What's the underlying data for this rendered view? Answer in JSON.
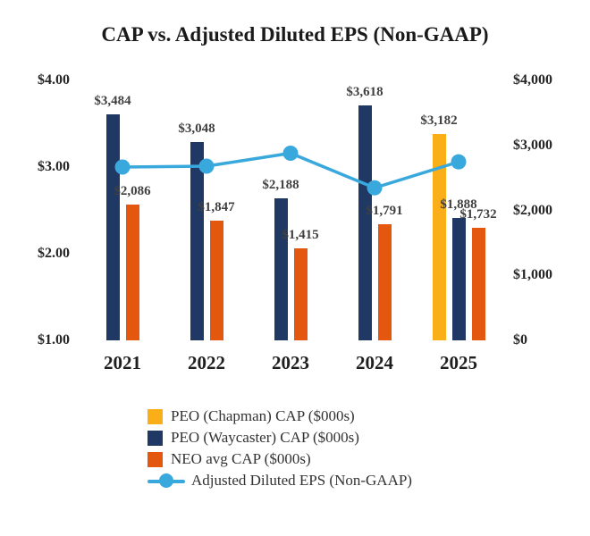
{
  "title": "CAP vs. Adjusted Diluted EPS (Non-GAAP)",
  "colors": {
    "chapman": "#FAAE17",
    "waycaster": "#1F3864",
    "neo": "#E4570E",
    "eps_line": "#39A8DC"
  },
  "chart_data": {
    "type": "combo-bar-line",
    "categories": [
      "2021",
      "2022",
      "2023",
      "2024",
      "2025"
    ],
    "bar_series": [
      {
        "name": "PEO (Chapman) CAP ($000s)",
        "key": "chapman",
        "color_key": "chapman",
        "values": [
          null,
          null,
          null,
          null,
          3182
        ],
        "labels": [
          "",
          "",
          "",
          "",
          "$3,182"
        ]
      },
      {
        "name": "PEO (Waycaster) CAP ($000s)",
        "key": "waycaster",
        "color_key": "waycaster",
        "values": [
          3484,
          3048,
          2188,
          3618,
          1888
        ],
        "labels": [
          "$3,484",
          "$3,048",
          "$2,188",
          "$3,618",
          "$1,888"
        ]
      },
      {
        "name": "NEO avg CAP ($000s)",
        "key": "neo",
        "color_key": "neo",
        "values": [
          2086,
          1847,
          1415,
          1791,
          1732
        ],
        "labels": [
          "$2,086",
          "$1,847",
          "$1,415",
          "$1,791",
          "$1,732"
        ]
      }
    ],
    "line_series": {
      "name": "Adjusted Diluted EPS (Non-GAAP)",
      "key": "eps",
      "color_key": "eps_line",
      "axis": "left",
      "values": [
        3.0,
        3.01,
        3.16,
        2.76,
        3.06
      ]
    },
    "left_axis": {
      "min": 1.0,
      "max": 4.0,
      "ticks": [
        "$4.00",
        "$3.00",
        "$2.00",
        "$1.00"
      ],
      "tick_values": [
        4,
        3,
        2,
        1
      ]
    },
    "right_axis": {
      "min": 0,
      "max": 4000,
      "ticks": [
        "$4,000",
        "$3,000",
        "$2,000",
        "$1,000",
        "$0"
      ],
      "tick_values": [
        4000,
        3000,
        2000,
        1000,
        0
      ]
    },
    "grid": false,
    "legend_position": "bottom"
  },
  "legend": [
    {
      "label": "PEO (Chapman) CAP ($000s)",
      "type": "swatch",
      "key": "chapman",
      "color_key": "chapman"
    },
    {
      "label": "PEO (Waycaster) CAP ($000s)",
      "type": "swatch",
      "key": "waycaster",
      "color_key": "waycaster"
    },
    {
      "label": "NEO avg CAP ($000s)",
      "type": "swatch",
      "key": "neo",
      "color_key": "neo"
    },
    {
      "label": "Adjusted Diluted EPS (Non-GAAP)",
      "type": "line-marker",
      "key": "eps",
      "color_key": "eps_line"
    }
  ]
}
